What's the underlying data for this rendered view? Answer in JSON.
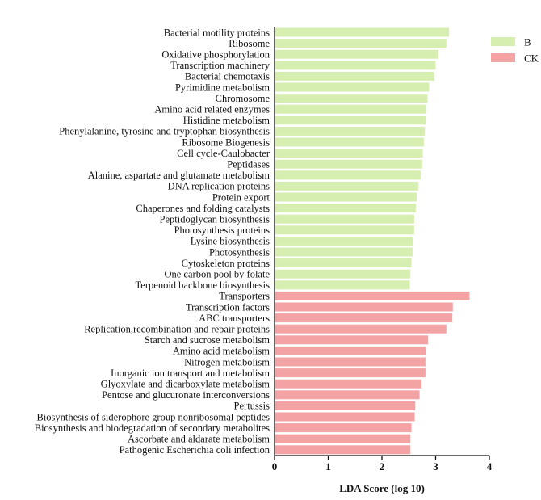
{
  "chart_data": {
    "type": "bar",
    "orientation": "horizontal",
    "title": "",
    "xlabel": "LDA Score (log 10)",
    "ylabel": "",
    "xlim": [
      0,
      4
    ],
    "x_ticks": [
      "0",
      "1",
      "2",
      "3",
      "4"
    ],
    "grid": false,
    "legend_placement": "top-right",
    "legend": [
      {
        "name": "B",
        "color": "#d6eeb0"
      },
      {
        "name": "CK",
        "color": "#f4a3a4"
      }
    ],
    "categories": [
      "Bacterial motility proteins",
      "Ribosome",
      "Oxidative phosphorylation",
      "Transcription machinery",
      "Bacterial chemotaxis",
      "Pyrimidine metabolism",
      "Chromosome",
      "Amino acid related enzymes",
      "Histidine metabolism",
      "Phenylalanine, tyrosine and tryptophan biosynthesis",
      "Ribosome Biogenesis",
      "Cell cycle-Caulobacter",
      "Peptidases",
      "Alanine, aspartate and glutamate metabolism",
      "DNA replication proteins",
      "Protein export",
      "Chaperones and folding catalysts",
      "Peptidoglycan biosynthesis",
      "Photosynthesis proteins",
      "Lysine biosynthesis",
      "Photosynthesis",
      "Cytoskeleton proteins",
      "One carbon pool by folate",
      "Terpenoid backbone biosynthesis",
      "Transporters",
      "Transcription factors",
      "ABC transporters",
      "Replication,recombination and repair proteins",
      "Starch and sucrose metabolism",
      "Amino acid metabolism",
      "Nitrogen metabolism",
      "Inorganic ion transport and metabolism",
      "Glyoxylate and dicarboxylate metabolism",
      "Pentose and glucuronate interconversions",
      "Pertussis",
      "Biosynthesis of siderophore group nonribosomal peptides",
      "Biosynthesis and biodegradation of secondary metabolites",
      "Ascorbate and aldarate metabolism",
      "Pathogenic Escherichia coli infection"
    ],
    "values": [
      3.25,
      3.2,
      3.05,
      3.0,
      2.98,
      2.88,
      2.85,
      2.83,
      2.82,
      2.8,
      2.78,
      2.76,
      2.75,
      2.72,
      2.68,
      2.65,
      2.63,
      2.6,
      2.6,
      2.58,
      2.57,
      2.55,
      2.53,
      2.52,
      3.63,
      3.32,
      3.31,
      3.2,
      2.86,
      2.82,
      2.81,
      2.81,
      2.74,
      2.7,
      2.62,
      2.61,
      2.55,
      2.53,
      2.53
    ],
    "groups": [
      "B",
      "B",
      "B",
      "B",
      "B",
      "B",
      "B",
      "B",
      "B",
      "B",
      "B",
      "B",
      "B",
      "B",
      "B",
      "B",
      "B",
      "B",
      "B",
      "B",
      "B",
      "B",
      "B",
      "B",
      "CK",
      "CK",
      "CK",
      "CK",
      "CK",
      "CK",
      "CK",
      "CK",
      "CK",
      "CK",
      "CK",
      "CK",
      "CK",
      "CK",
      "CK"
    ]
  }
}
